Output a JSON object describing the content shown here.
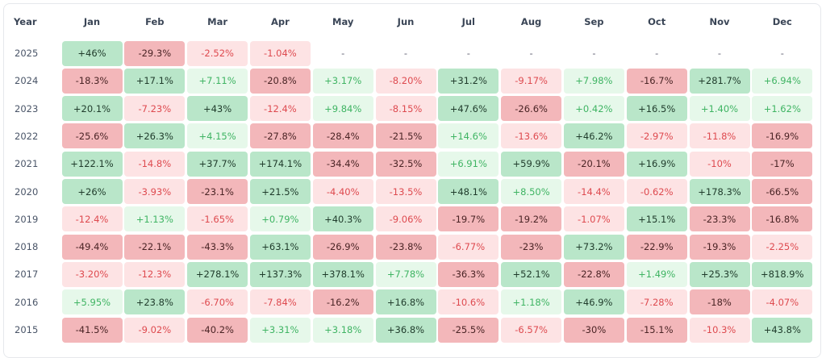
{
  "table": {
    "header": [
      "Year",
      "Jan",
      "Feb",
      "Mar",
      "Apr",
      "May",
      "Jun",
      "Jul",
      "Aug",
      "Sep",
      "Oct",
      "Nov",
      "Dec"
    ],
    "rows": [
      {
        "year": "2025",
        "cells": [
          "+46%",
          "-29.3%",
          "-2.52%",
          "-1.04%",
          "-",
          "-",
          "-",
          "-",
          "-",
          "-",
          "-",
          "-"
        ]
      },
      {
        "year": "2024",
        "cells": [
          "-18.3%",
          "+17.1%",
          "+7.11%",
          "-20.8%",
          "+3.17%",
          "-8.20%",
          "+31.2%",
          "-9.17%",
          "+7.98%",
          "-16.7%",
          "+281.7%",
          "+6.94%"
        ]
      },
      {
        "year": "2023",
        "cells": [
          "+20.1%",
          "-7.23%",
          "+43%",
          "-12.4%",
          "+9.84%",
          "-8.15%",
          "+47.6%",
          "-26.6%",
          "+0.42%",
          "+16.5%",
          "+1.40%",
          "+1.62%"
        ]
      },
      {
        "year": "2022",
        "cells": [
          "-25.6%",
          "+26.3%",
          "+4.15%",
          "-27.8%",
          "-28.4%",
          "-21.5%",
          "+14.6%",
          "-13.6%",
          "+46.2%",
          "-2.97%",
          "-11.8%",
          "-16.9%"
        ]
      },
      {
        "year": "2021",
        "cells": [
          "+122.1%",
          "-14.8%",
          "+37.7%",
          "+174.1%",
          "-34.4%",
          "-32.5%",
          "+6.91%",
          "+59.9%",
          "-20.1%",
          "+16.9%",
          "-10%",
          "-17%"
        ]
      },
      {
        "year": "2020",
        "cells": [
          "+26%",
          "-3.93%",
          "-23.1%",
          "+21.5%",
          "-4.40%",
          "-13.5%",
          "+48.1%",
          "+8.50%",
          "-14.4%",
          "-0.62%",
          "+178.3%",
          "-66.5%"
        ]
      },
      {
        "year": "2019",
        "cells": [
          "-12.4%",
          "+1.13%",
          "-1.65%",
          "+0.79%",
          "+40.3%",
          "-9.06%",
          "-19.7%",
          "-19.2%",
          "-1.07%",
          "+15.1%",
          "-23.3%",
          "-16.8%"
        ]
      },
      {
        "year": "2018",
        "cells": [
          "-49.4%",
          "-22.1%",
          "-43.3%",
          "+63.1%",
          "-26.9%",
          "-23.8%",
          "-6.77%",
          "-23%",
          "+73.2%",
          "-22.9%",
          "-19.3%",
          "-2.25%"
        ]
      },
      {
        "year": "2017",
        "cells": [
          "-3.20%",
          "-12.3%",
          "+278.1%",
          "+137.3%",
          "+378.1%",
          "+7.78%",
          "-36.3%",
          "+52.1%",
          "-22.8%",
          "+1.49%",
          "+25.3%",
          "+818.9%"
        ]
      },
      {
        "year": "2016",
        "cells": [
          "+5.95%",
          "+23.8%",
          "-6.70%",
          "-7.84%",
          "-16.2%",
          "+16.8%",
          "-10.6%",
          "+1.18%",
          "+46.9%",
          "-7.28%",
          "-18%",
          "-4.07%"
        ]
      },
      {
        "year": "2015",
        "cells": [
          "-41.5%",
          "-9.02%",
          "-40.2%",
          "+3.31%",
          "+3.18%",
          "+36.8%",
          "-25.5%",
          "-6.57%",
          "-30%",
          "-15.1%",
          "-10.3%",
          "+43.8%"
        ]
      }
    ]
  }
}
